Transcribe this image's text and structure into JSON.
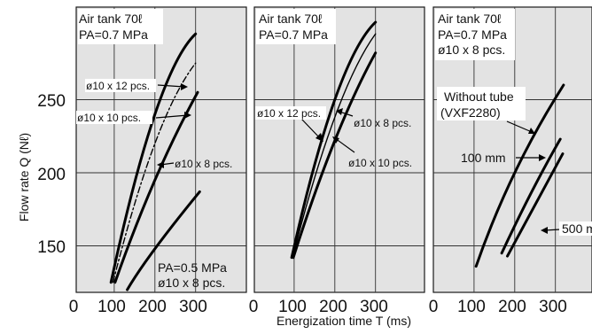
{
  "chart_data": [
    {
      "type": "line",
      "title": "",
      "xlabel": "Energization time T (ms)",
      "ylabel": "Flow rate Q (Nℓ)",
      "xlim": [
        0,
        350
      ],
      "ylim": [
        120,
        305
      ],
      "x_ticks": [
        "0",
        "100",
        "200",
        "300"
      ],
      "y_ticks": [
        "150",
        "200",
        "250"
      ],
      "grid": true,
      "annotations": [
        {
          "text": "Air tank 70ℓ"
        },
        {
          "text": "PA=0.7 MPa"
        },
        {
          "text": "PA=0.5 MPa"
        },
        {
          "text": "ø10 x 8 pcs."
        }
      ],
      "series": [
        {
          "name": "ø10 x 12 pcs.",
          "style": "thick",
          "x": [
            92,
            200,
            300
          ],
          "y": [
            125,
            240,
            295
          ]
        },
        {
          "name": "ø10 x 10 pcs.",
          "style": "dashdot",
          "x": [
            97,
            200,
            300
          ],
          "y": [
            125,
            220,
            275
          ]
        },
        {
          "name": "ø10 x 8 pcs.",
          "style": "thick",
          "x": [
            102,
            200,
            305
          ],
          "y": [
            125,
            195,
            255
          ]
        },
        {
          "name": "PA=0.5 MPa ø10 x 8 pcs.",
          "style": "thick",
          "x": [
            132,
            200,
            310
          ],
          "y": [
            120,
            148,
            187
          ]
        }
      ]
    },
    {
      "type": "line",
      "title": "",
      "xlabel": "Energization time T (ms)",
      "ylabel": "Flow rate Q (Nℓ)",
      "xlim": [
        0,
        350
      ],
      "ylim": [
        120,
        305
      ],
      "x_ticks": [
        "0",
        "100",
        "200",
        "300"
      ],
      "y_ticks": [
        "150",
        "200",
        "250"
      ],
      "grid": true,
      "annotations": [
        {
          "text": "Air tank 70ℓ"
        },
        {
          "text": "PA=0.7 MPa"
        }
      ],
      "series": [
        {
          "name": "ø10 x 12 pcs.",
          "style": "thick",
          "x": [
            94,
            200,
            300
          ],
          "y": [
            142,
            250,
            303
          ]
        },
        {
          "name": "ø10 x 10 pcs.",
          "style": "thin",
          "x": [
            96,
            200,
            300
          ],
          "y": [
            142,
            238,
            295
          ]
        },
        {
          "name": "ø10 x 8 pcs.",
          "style": "thick",
          "x": [
            98,
            200,
            300
          ],
          "y": [
            142,
            222,
            282
          ]
        }
      ]
    },
    {
      "type": "line",
      "title": "",
      "xlabel": "Energization time T (ms)",
      "ylabel": "Flow rate Q (Nℓ)",
      "xlim": [
        0,
        350
      ],
      "ylim": [
        120,
        305
      ],
      "x_ticks": [
        "0",
        "100",
        "200",
        "300"
      ],
      "y_ticks": [
        "150",
        "200",
        "250"
      ],
      "grid": true,
      "annotations": [
        {
          "text": "Air tank 70ℓ"
        },
        {
          "text": "PA=0.7 MPa"
        },
        {
          "text": "ø10 x 8 pcs."
        }
      ],
      "series": [
        {
          "name": "Without tube (VXF2280)",
          "style": "thick",
          "x": [
            105,
            200,
            320
          ],
          "y": [
            136,
            200,
            260
          ]
        },
        {
          "name": "100 mm",
          "style": "thick",
          "x": [
            168,
            240,
            312
          ],
          "y": [
            145,
            186,
            223
          ]
        },
        {
          "name": "500 mm",
          "style": "thick",
          "x": [
            182,
            250,
            318
          ],
          "y": [
            143,
            178,
            213
          ]
        }
      ]
    }
  ],
  "labels": {
    "p1_tank": "Air tank 70ℓ",
    "p1_pa": "PA=0.7 MPa",
    "p1_s12": "ø10 x 12 pcs.",
    "p1_s10": "ø10 x 10 pcs.",
    "p1_s8": "ø10 x 8 pcs.",
    "p1_pa05": "PA=0.5 MPa",
    "p1_pa05_tube": "ø10 x 8 pcs.",
    "p2_tank": "Air tank 70ℓ",
    "p2_pa": "PA=0.7 MPa",
    "p2_s12": "ø10 x 12 pcs.",
    "p2_s8": "ø10 x 8 pcs.",
    "p2_s10": "ø10 x 10 pcs.",
    "p3_tank": "Air tank 70ℓ",
    "p3_pa": "PA=0.7 MPa",
    "p3_tube": "ø10 x 8 pcs.",
    "p3_without_1": "Without tube",
    "p3_without_2": "(VXF2280)",
    "p3_100": "100 mm",
    "p3_500": "500 mm",
    "y_ticks": [
      "150",
      "200",
      "250"
    ],
    "x_ticks": [
      "0",
      "100",
      "200",
      "300"
    ],
    "ylabel": "Flow rate Q (Nℓ)",
    "xlabel": "Energization time T (ms)"
  }
}
